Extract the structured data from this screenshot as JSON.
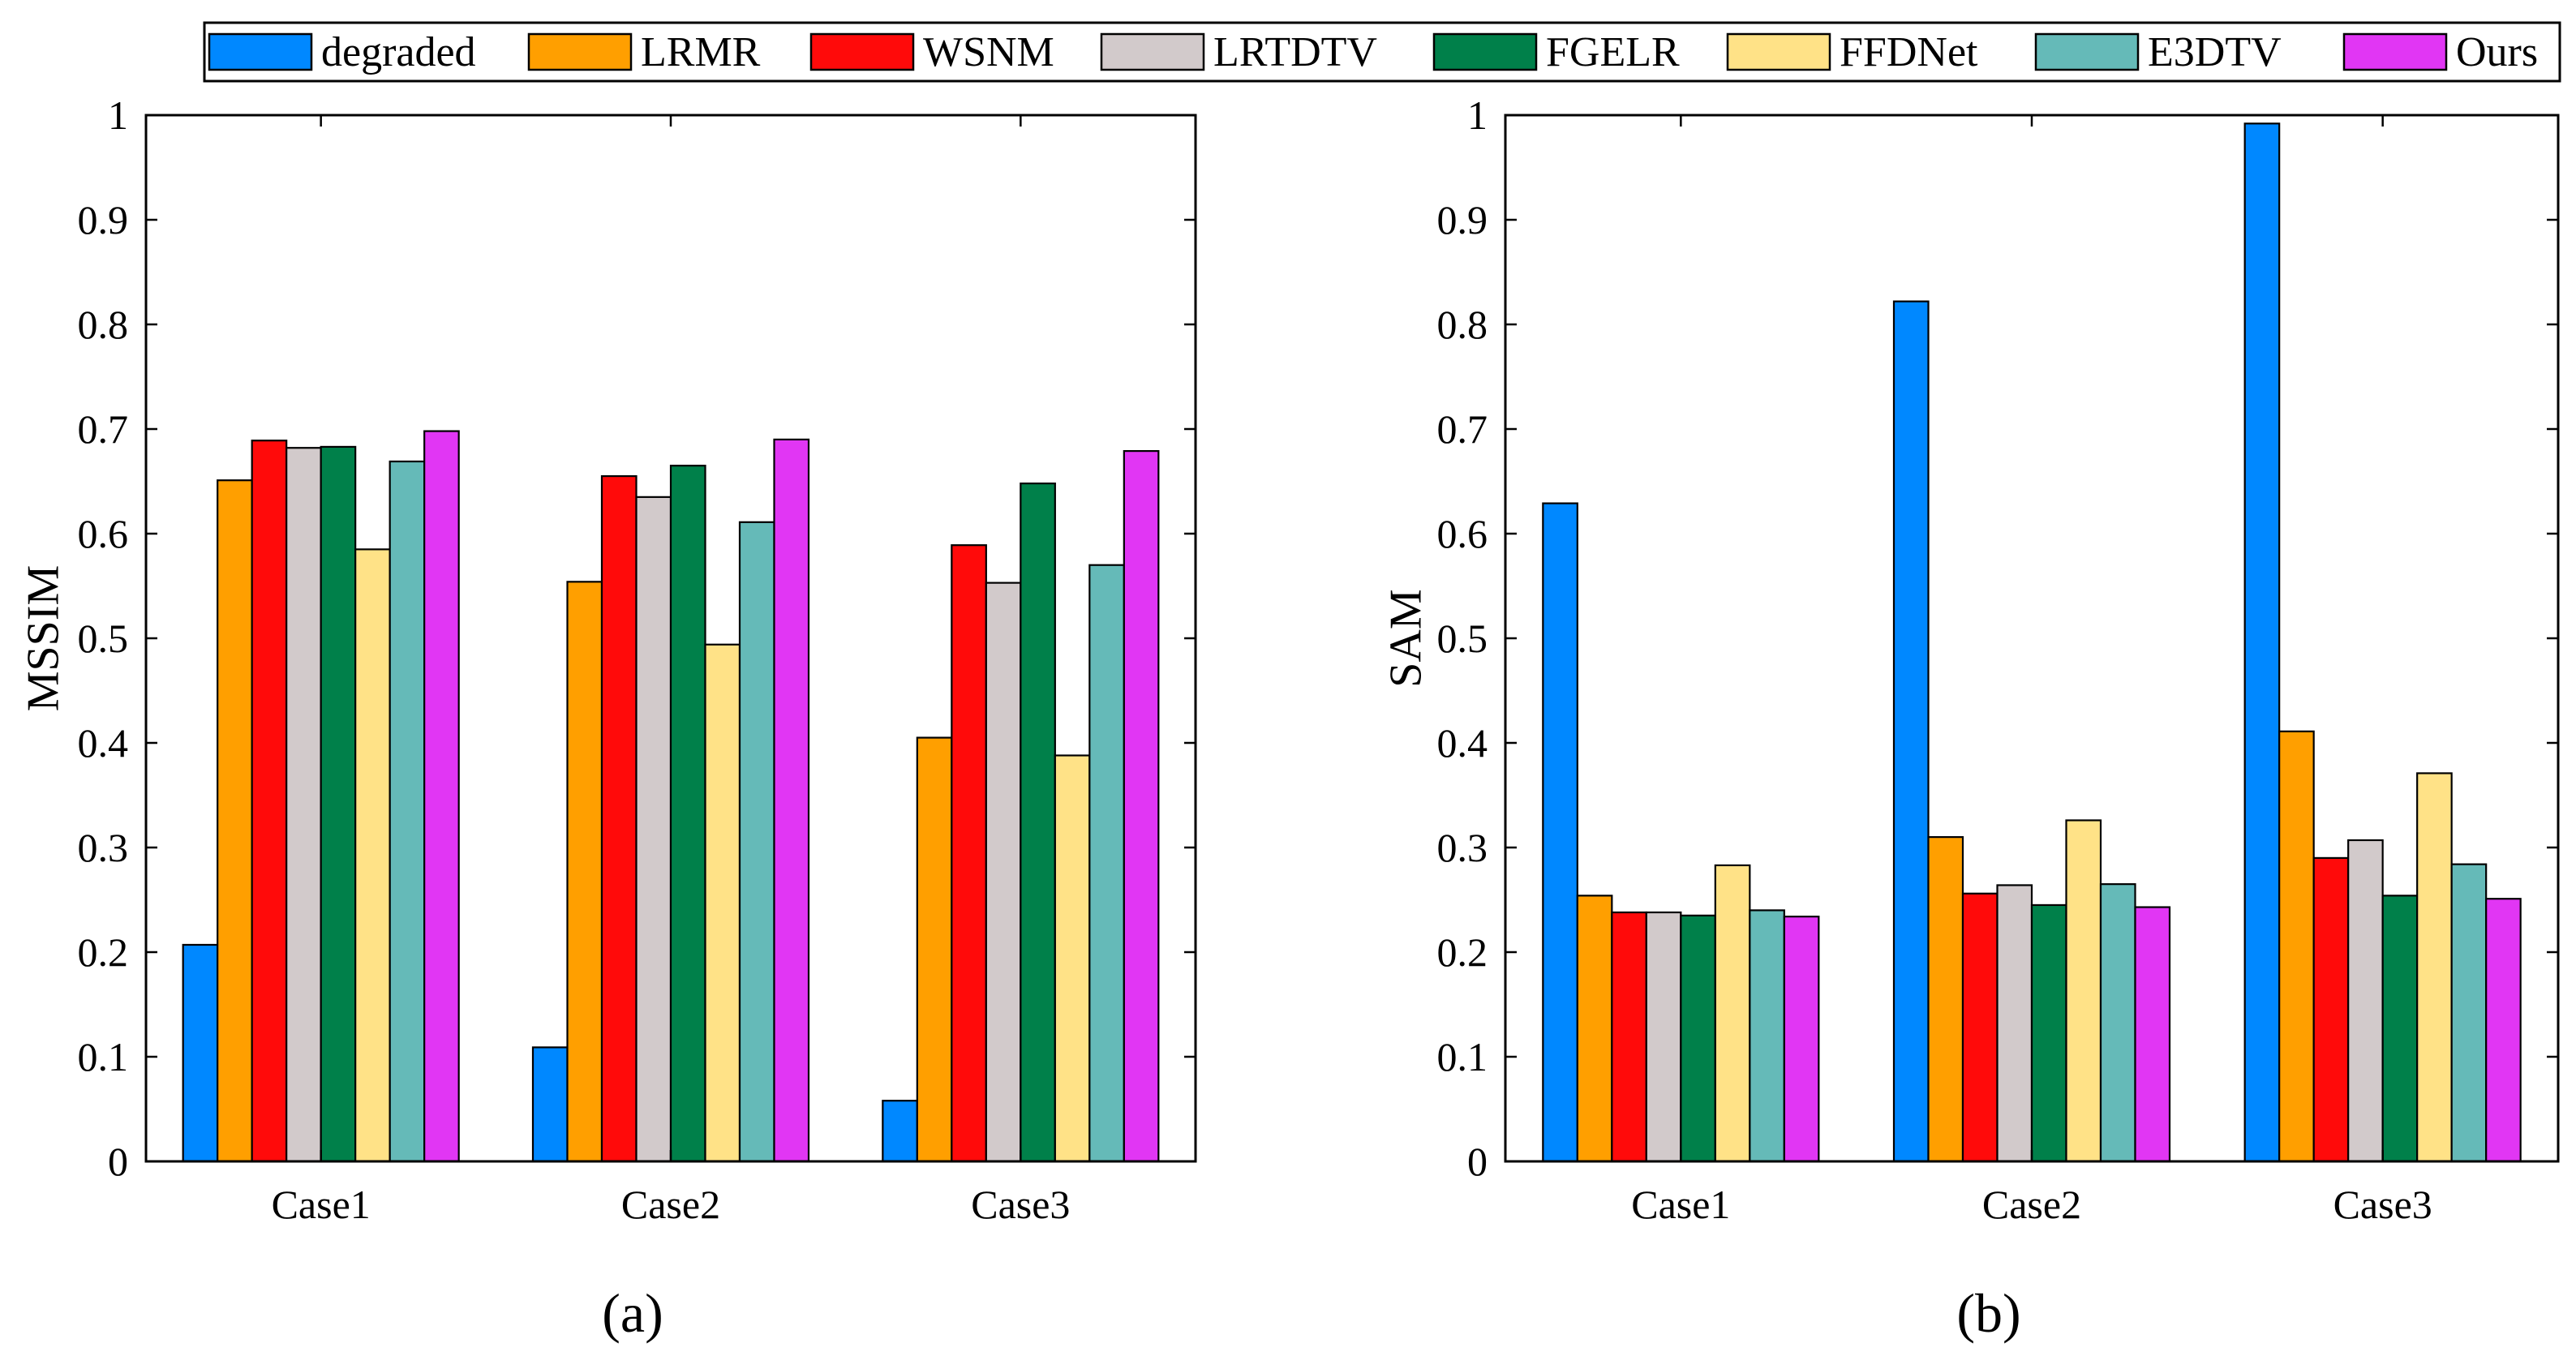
{
  "legend": {
    "entries": [
      {
        "name": "degraded",
        "color": "#0088ff"
      },
      {
        "name": "LRMR",
        "color": "#ff9f00"
      },
      {
        "name": "WSNM",
        "color": "#ff0a0a"
      },
      {
        "name": "LRTDTV",
        "color": "#d2cacb"
      },
      {
        "name": "FGELR",
        "color": "#00804a"
      },
      {
        "name": "FFDNet",
        "color": "#ffe287"
      },
      {
        "name": "E3DTV",
        "color": "#65bab8"
      },
      {
        "name": "Ours",
        "color": "#e136f4"
      }
    ]
  },
  "chart_data": [
    {
      "type": "bar",
      "panel_label": "(a)",
      "title": "",
      "xlabel": "",
      "ylabel": "MSSIM",
      "ylim": [
        0,
        1
      ],
      "yticks": [
        "0",
        "0.1",
        "0.2",
        "0.3",
        "0.4",
        "0.5",
        "0.6",
        "0.7",
        "0.8",
        "0.9",
        "1"
      ],
      "categories": [
        "Case1",
        "Case2",
        "Case3"
      ],
      "series": [
        {
          "name": "degraded",
          "values": [
            0.207,
            0.109,
            0.058
          ]
        },
        {
          "name": "LRMR",
          "values": [
            0.651,
            0.554,
            0.405
          ]
        },
        {
          "name": "WSNM",
          "values": [
            0.689,
            0.655,
            0.589
          ]
        },
        {
          "name": "LRTDTV",
          "values": [
            0.682,
            0.635,
            0.553
          ]
        },
        {
          "name": "FGELR",
          "values": [
            0.683,
            0.665,
            0.648
          ]
        },
        {
          "name": "FFDNet",
          "values": [
            0.585,
            0.494,
            0.388
          ]
        },
        {
          "name": "E3DTV",
          "values": [
            0.669,
            0.611,
            0.57
          ]
        },
        {
          "name": "Ours",
          "values": [
            0.698,
            0.69,
            0.679
          ]
        }
      ]
    },
    {
      "type": "bar",
      "panel_label": "(b)",
      "title": "",
      "xlabel": "",
      "ylabel": "SAM",
      "ylim": [
        0,
        1
      ],
      "yticks": [
        "0",
        "0.1",
        "0.2",
        "0.3",
        "0.4",
        "0.5",
        "0.6",
        "0.7",
        "0.8",
        "0.9",
        "1"
      ],
      "categories": [
        "Case1",
        "Case2",
        "Case3"
      ],
      "series": [
        {
          "name": "degraded",
          "values": [
            0.629,
            0.822,
            0.992
          ]
        },
        {
          "name": "LRMR",
          "values": [
            0.254,
            0.31,
            0.411
          ]
        },
        {
          "name": "WSNM",
          "values": [
            0.238,
            0.256,
            0.29
          ]
        },
        {
          "name": "LRTDTV",
          "values": [
            0.238,
            0.264,
            0.307
          ]
        },
        {
          "name": "FGELR",
          "values": [
            0.235,
            0.245,
            0.254
          ]
        },
        {
          "name": "FFDNet",
          "values": [
            0.283,
            0.326,
            0.371
          ]
        },
        {
          "name": "E3DTV",
          "values": [
            0.24,
            0.265,
            0.284
          ]
        },
        {
          "name": "Ours",
          "values": [
            0.234,
            0.243,
            0.251
          ]
        }
      ]
    }
  ]
}
